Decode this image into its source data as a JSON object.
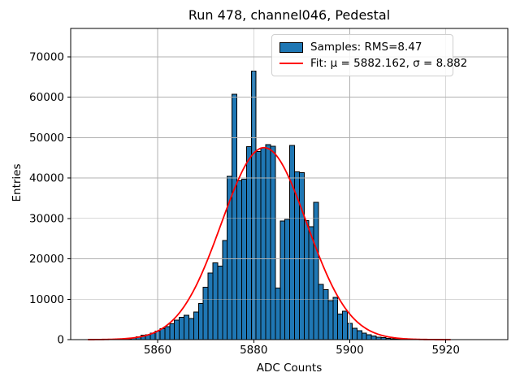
{
  "chart_data": {
    "type": "bar",
    "title": "Run 478, channel046, Pedestal",
    "xlabel": "ADC Counts",
    "ylabel": "Entries",
    "xlim": [
      5841.9,
      5932.9
    ],
    "ylim": [
      0,
      77000
    ],
    "xticks": [
      5860,
      5880,
      5900,
      5920
    ],
    "yticks": [
      0,
      10000,
      20000,
      30000,
      40000,
      50000,
      60000,
      70000
    ],
    "grid": true,
    "legend_position": "upper right",
    "colors": {
      "bar_fill": "#1f77b4",
      "bar_edge": "#000000",
      "fit_line": "#ff0000",
      "grid_line": "#b0b0b0",
      "spine": "#000000"
    },
    "bin_width": 1,
    "bins": {
      "centers": [
        5853,
        5854,
        5855,
        5856,
        5857,
        5858,
        5859,
        5860,
        5861,
        5862,
        5863,
        5864,
        5865,
        5866,
        5867,
        5868,
        5869,
        5870,
        5871,
        5872,
        5873,
        5874,
        5875,
        5876,
        5877,
        5878,
        5879,
        5880,
        5881,
        5882,
        5883,
        5884,
        5885,
        5886,
        5887,
        5888,
        5889,
        5890,
        5891,
        5892,
        5893,
        5894,
        5895,
        5896,
        5897,
        5898,
        5899,
        5900,
        5901,
        5902,
        5903,
        5904,
        5905,
        5906,
        5907,
        5908,
        5909,
        5910,
        5911,
        5912,
        5913
      ],
      "values": [
        100,
        250,
        450,
        700,
        1100,
        1250,
        1650,
        2100,
        2700,
        3250,
        3900,
        4800,
        5500,
        6000,
        5200,
        6800,
        8900,
        13000,
        16500,
        19000,
        18200,
        24500,
        40400,
        60700,
        39300,
        39700,
        47700,
        66400,
        46500,
        47400,
        48300,
        47800,
        12800,
        29400,
        29800,
        48100,
        41500,
        41300,
        29500,
        27900,
        34000,
        13700,
        12400,
        9700,
        10500,
        6300,
        7000,
        4000,
        2800,
        2200,
        1600,
        1200,
        900,
        600,
        500,
        350,
        250,
        150,
        100,
        80,
        50
      ]
    },
    "fit": {
      "mu": 5882.162,
      "sigma": 8.882,
      "amplitude": 47500,
      "x_range": [
        5845.5,
        5921
      ]
    },
    "stats": {
      "rms": 8.47
    }
  },
  "legend": {
    "samples_label": "Samples: RMS=8.47",
    "fit_label": "Fit: μ = 5882.162, σ = 8.882"
  }
}
